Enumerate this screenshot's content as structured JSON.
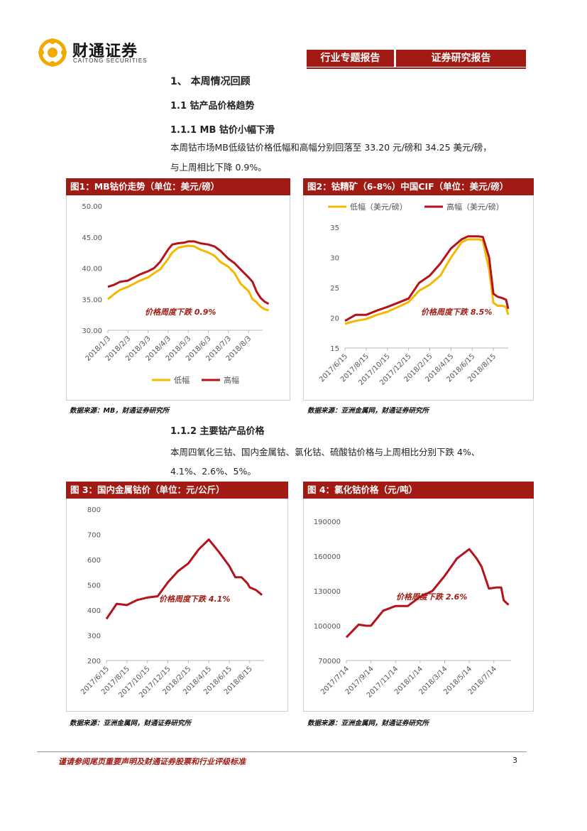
{
  "header": {
    "logo_cn": "财通证券",
    "logo_en": "CAITONG SECURITIES",
    "tag_left": "行业专题报告",
    "tag_right": "证券研究报告"
  },
  "sections": {
    "s1": "1、 本周情况回顾",
    "s11": "1.1  钴产品价格趋势",
    "s111": "1.1.1  MB 钴价小幅下滑",
    "p1_line1": "本周钴市场MB低级钴价格低幅和高幅分别回落至 33.20 元/磅和 34.25 美元/磅，",
    "p1_line2": "与上周相比下降 0.9%。",
    "s112": "1.1.2  主要钴产品价格",
    "p2_line1": "本周四氧化三钴、国内金属钴、氯化钴、硫酸钴价格与上周相比分别下跌 4%、",
    "p2_line2": "4.1%、2.6%、5%。"
  },
  "figures": {
    "f1": {
      "title": "图1：MB钴价走势（单位：美元/磅）",
      "source": "数据来源：MB，财通证券研究所"
    },
    "f2": {
      "title": "图2：钴精矿（6-8%）中国CIF（单位：美元/磅）",
      "source": "数据来源：亚洲金属网，财通证券研究所"
    },
    "f3": {
      "title": "图 3：国内金属钴价（单位：元/公斤）",
      "source": "数据来源：亚洲金属网，财通证券研究所"
    },
    "f4": {
      "title": "图 4：氯化钴价格（元/吨）",
      "source": "数据来源：亚洲金属网，财通证券研究所"
    }
  },
  "footer": {
    "note": "谨请参阅尾页重要声明及财通证券股票和行业评级标准",
    "page": "3"
  },
  "colors": {
    "accent": "#a11b14",
    "series_high": "#b5121b",
    "series_low": "#f5b800"
  },
  "chart_data": [
    {
      "id": "f1",
      "type": "line",
      "x_ticks": [
        "2018/1/3",
        "2018/2/3",
        "2018/3/3",
        "2018/4/3",
        "2018/5/3",
        "2018/6/3",
        "2018/7/3",
        "2018/8/3"
      ],
      "ylim": [
        30,
        50
      ],
      "y_ticks": [
        "30.00",
        "35.00",
        "40.00",
        "45.00",
        "50.00"
      ],
      "annotation": "价格周度下跌 0.9%",
      "legend_position": "bottom",
      "series": [
        {
          "name": "低幅",
          "color": "#f5b800",
          "x": [
            0,
            0.3,
            0.6,
            1,
            1.3,
            1.6,
            2,
            2.3,
            2.6,
            3,
            3.2,
            3.5,
            3.8,
            4,
            4.3,
            4.6,
            5,
            5.3,
            5.6,
            6,
            6.3,
            6.6,
            7,
            7.2,
            7.4,
            7.6,
            7.8,
            8
          ],
          "values": [
            35.0,
            35.8,
            36.5,
            37.0,
            37.5,
            38.0,
            38.5,
            39.2,
            39.8,
            41.5,
            42.5,
            43.3,
            43.5,
            43.6,
            43.5,
            43.0,
            42.5,
            42.0,
            41.0,
            40.2,
            39.2,
            37.5,
            36.3,
            35.0,
            34.5,
            33.8,
            33.4,
            33.2
          ]
        },
        {
          "name": "高幅",
          "color": "#b5121b",
          "x": [
            0,
            0.3,
            0.6,
            1,
            1.3,
            1.6,
            2,
            2.3,
            2.6,
            3,
            3.2,
            3.5,
            3.8,
            4,
            4.3,
            4.6,
            5,
            5.3,
            5.6,
            6,
            6.3,
            6.6,
            7,
            7.2,
            7.4,
            7.6,
            7.8,
            8
          ],
          "values": [
            37.0,
            37.3,
            37.8,
            38.0,
            38.5,
            39.0,
            39.5,
            40.0,
            41.0,
            43.0,
            43.8,
            44.0,
            44.1,
            44.3,
            44.3,
            44.0,
            43.8,
            43.5,
            42.8,
            41.5,
            40.8,
            39.8,
            38.5,
            37.8,
            36.2,
            35.2,
            34.6,
            34.25
          ]
        }
      ]
    },
    {
      "id": "f2",
      "type": "line",
      "x_ticks": [
        "2017/6/15",
        "2017/8/15",
        "2017/10/15",
        "2017/12/15",
        "2018/2/15",
        "2018/4/15",
        "2018/6/15",
        "2018/8/15"
      ],
      "ylim": [
        15,
        35
      ],
      "y_ticks": [
        "15",
        "20",
        "25",
        "30",
        "35"
      ],
      "annotation": "价格周度下跌 8.5%",
      "legend_position": "top",
      "series": [
        {
          "name": "低幅（美元/磅）",
          "color": "#f5b800",
          "x": [
            0,
            0.5,
            1,
            1.5,
            2,
            2.5,
            3,
            3.5,
            4,
            4.5,
            5,
            5.5,
            5.8,
            6,
            6.3,
            6.5,
            6.8,
            7,
            7.2,
            7.4,
            7.6,
            7.7
          ],
          "values": [
            19.0,
            19.5,
            19.8,
            20.5,
            21.0,
            21.8,
            22.6,
            24.5,
            25.5,
            27.0,
            30.0,
            32.5,
            33.0,
            33.0,
            33.0,
            32.8,
            28.0,
            22.5,
            22.0,
            22.0,
            21.8,
            20.5
          ]
        },
        {
          "name": "高幅（美元/磅）",
          "color": "#b5121b",
          "x": [
            0,
            0.5,
            1,
            1.5,
            2,
            2.5,
            3,
            3.5,
            4,
            4.5,
            5,
            5.5,
            5.8,
            6,
            6.3,
            6.5,
            6.8,
            7,
            7.2,
            7.4,
            7.6,
            7.7
          ],
          "values": [
            19.5,
            20.5,
            20.5,
            21.2,
            21.8,
            22.5,
            23.2,
            25.8,
            27.0,
            29.0,
            31.5,
            33.0,
            33.5,
            33.5,
            33.5,
            33.4,
            30.0,
            24.0,
            23.5,
            23.3,
            23.0,
            21.5
          ]
        }
      ]
    },
    {
      "id": "f3",
      "type": "line",
      "x_ticks": [
        "2017/6/15",
        "2017/8/15",
        "2017/10/15",
        "2017/12/15",
        "2018/2/15",
        "2018/4/15",
        "2018/6/15",
        "2018/8/15"
      ],
      "ylim": [
        200,
        800
      ],
      "y_ticks": [
        "200",
        "300",
        "400",
        "500",
        "600",
        "700",
        "800"
      ],
      "annotation": "价格周度下跌 4.1%",
      "series": [
        {
          "name": "国内金属钴",
          "color": "#b5121b",
          "x": [
            0,
            0.5,
            1,
            1.5,
            2,
            2.5,
            3,
            3.5,
            4,
            4.5,
            5,
            5.5,
            6,
            6.3,
            6.6,
            6.9,
            7,
            7.3,
            7.6
          ],
          "values": [
            365,
            425,
            420,
            440,
            450,
            455,
            510,
            555,
            585,
            640,
            680,
            630,
            575,
            530,
            530,
            505,
            490,
            480,
            460
          ]
        }
      ]
    },
    {
      "id": "f4",
      "type": "line",
      "x_ticks": [
        "2017/7/14",
        "2017/9/14",
        "2017/11/14",
        "2018/1/14",
        "2018/3/14",
        "2018/5/14",
        "2018/7/14"
      ],
      "ylim": [
        70000,
        190000
      ],
      "y_ticks": [
        "70000",
        "100000",
        "130000",
        "160000",
        "190000"
      ],
      "annotation": "价格周度下跌 2.6%",
      "series": [
        {
          "name": "氯化钴",
          "color": "#b5121b",
          "x": [
            0,
            0.5,
            0.8,
            1,
            1.5,
            2,
            2.5,
            3,
            3.5,
            4,
            4.5,
            5,
            5.3,
            5.5,
            5.8,
            6.1,
            6.3,
            6.4,
            6.6
          ],
          "values": [
            90000,
            101000,
            100000,
            100000,
            113000,
            117000,
            117000,
            125000,
            130000,
            143000,
            158000,
            166000,
            158000,
            151000,
            132000,
            133000,
            133000,
            122000,
            118000
          ]
        }
      ]
    }
  ]
}
